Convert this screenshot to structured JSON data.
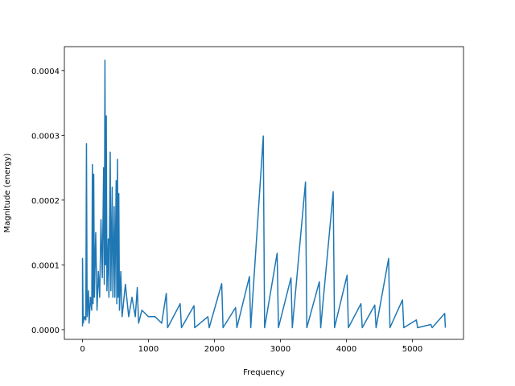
{
  "chart_data": {
    "type": "line",
    "x_label": "Frequency",
    "y_label": "Magnitude (energy)",
    "color": "#1f77b4",
    "x": [
      0,
      0,
      10,
      30,
      50,
      60,
      70,
      90,
      100,
      120,
      140,
      150,
      160,
      170,
      180,
      200,
      220,
      240,
      260,
      280,
      300,
      320,
      330,
      340,
      350,
      360,
      370,
      390,
      400,
      420,
      430,
      450,
      460,
      480,
      490,
      510,
      520,
      530,
      540,
      550,
      560,
      580,
      600,
      650,
      700,
      750,
      800,
      830,
      850,
      900,
      1000,
      1100,
      1200,
      1270,
      1290,
      1480,
      1500,
      1690,
      1700,
      1900,
      1920,
      2110,
      2130,
      2320,
      2340,
      2530,
      2550,
      2740,
      2760,
      2950,
      2970,
      3160,
      3180,
      3380,
      3400,
      3590,
      3610,
      3800,
      3820,
      4010,
      4030,
      4220,
      4240,
      4430,
      4450,
      4640,
      4660,
      4850,
      4870,
      5060,
      5080,
      5280,
      5300,
      5490,
      5500
    ],
    "values": [
      5e-06,
      0.00011,
      1e-05,
      2e-05,
      1.5e-05,
      0.000287,
      2e-05,
      6e-05,
      1e-05,
      5e-05,
      3e-05,
      0.000255,
      4e-05,
      0.00024,
      5e-05,
      0.00015,
      3e-05,
      9e-05,
      5e-05,
      0.00017,
      8e-05,
      0.00025,
      7e-05,
      0.000416,
      0.0001,
      0.00033,
      6e-05,
      0.00014,
      5e-05,
      0.000274,
      6e-05,
      0.00022,
      5e-05,
      0.00019,
      5e-05,
      0.00023,
      4e-05,
      0.000263,
      5e-05,
      0.00021,
      3e-05,
      9e-05,
      2e-05,
      7e-05,
      2e-05,
      5e-05,
      2e-05,
      6.5e-05,
      1e-05,
      3e-05,
      2e-05,
      2e-05,
      1e-05,
      5.6e-05,
      3e-06,
      4e-05,
      3e-06,
      3.7e-05,
      3e-06,
      2e-05,
      3e-06,
      7.1e-05,
      3e-06,
      3.4e-05,
      3e-06,
      8.2e-05,
      3e-06,
      0.000299,
      3e-06,
      0.000118,
      3e-06,
      8e-05,
      3e-06,
      0.000228,
      3e-06,
      7.4e-05,
      3e-06,
      0.000213,
      3e-06,
      8.4e-05,
      3e-06,
      4e-05,
      3e-06,
      3.8e-05,
      3e-06,
      0.00011,
      3e-06,
      4.6e-05,
      3e-06,
      1.5e-05,
      3e-06,
      8e-06,
      3e-06,
      2.5e-05,
      3e-06
    ],
    "xlim": [
      -275,
      5775
    ],
    "ylim": [
      -1.5e-05,
      0.000437
    ],
    "xticks": [
      0,
      1000,
      2000,
      3000,
      4000,
      5000
    ],
    "yticks": [
      {
        "value": 0,
        "label": "0.0000"
      },
      {
        "value": 0.0001,
        "label": "0.0001"
      },
      {
        "value": 0.0002,
        "label": "0.0002"
      },
      {
        "value": 0.0003,
        "label": "0.0003"
      },
      {
        "value": 0.0004,
        "label": "0.0004"
      }
    ]
  }
}
